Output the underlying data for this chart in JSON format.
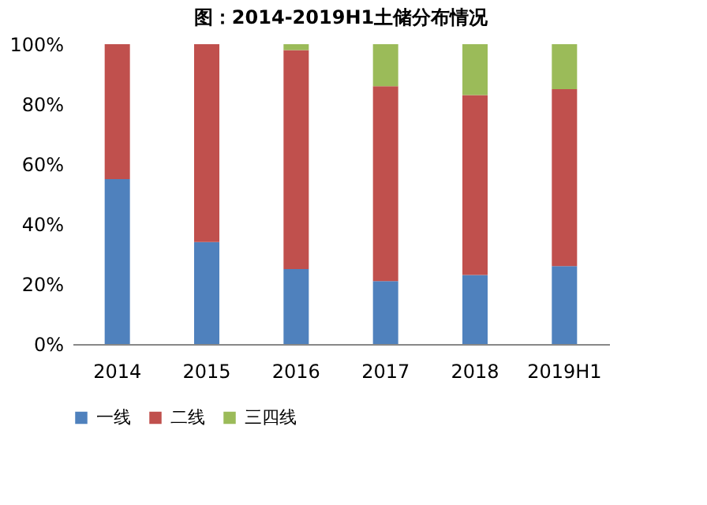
{
  "chart_data": {
    "type": "bar",
    "stacked": true,
    "title": "图：2014-2019H1土储分布情况",
    "categories": [
      "2014",
      "2015",
      "2016",
      "2017",
      "2018",
      "2019H1"
    ],
    "series": [
      {
        "name": "一线",
        "color": "#4f81bd",
        "values": [
          55,
          34,
          25,
          21,
          23,
          26
        ]
      },
      {
        "name": "二线",
        "color": "#c0504d",
        "values": [
          45,
          66,
          73,
          65,
          60,
          59
        ]
      },
      {
        "name": "三四线",
        "color": "#9bbb59",
        "values": [
          0,
          0,
          2,
          14,
          17,
          15
        ]
      }
    ],
    "ylim": [
      0,
      100
    ],
    "yticks": [
      {
        "value": 0,
        "label": "0%"
      },
      {
        "value": 20,
        "label": "20%"
      },
      {
        "value": 40,
        "label": "40%"
      },
      {
        "value": 60,
        "label": "60%"
      },
      {
        "value": 80,
        "label": "80%"
      },
      {
        "value": 100,
        "label": "100%"
      }
    ],
    "grid": false,
    "legend": "bottom"
  }
}
